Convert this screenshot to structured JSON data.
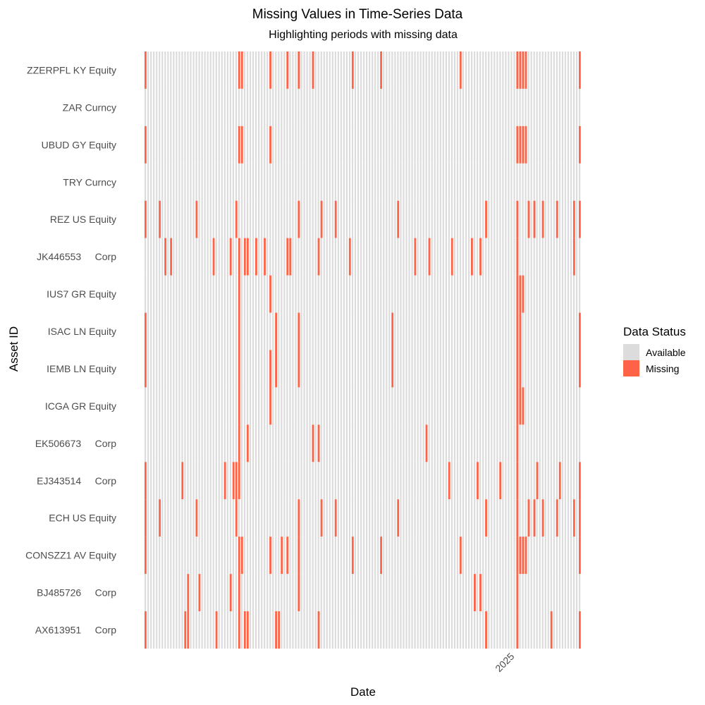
{
  "chart_data": {
    "type": "heatmap",
    "title": "Missing Values in Time-Series Data",
    "subtitle": "Highlighting periods with missing data",
    "xlabel": "Date",
    "ylabel": "Asset ID",
    "x_tick_labels": [
      "2025"
    ],
    "x_tick_column": 130,
    "column_count": 154,
    "grid": false,
    "legend": {
      "title": "Data Status",
      "placement": "right",
      "entries": [
        {
          "label": "Available",
          "color": "#dcdcdc"
        },
        {
          "label": "Missing",
          "color": "#ff6347"
        }
      ]
    },
    "assets": [
      "ZZERPFL KY Equity",
      "ZAR Curncy",
      "UBUD GY Equity",
      "TRY Curncy",
      "REZ US Equity",
      "JK446553     Corp",
      "IUS7 GR Equity",
      "ISAC LN Equity",
      "IEMB LN Equity",
      "ICGA GR Equity",
      "EK506673     Corp",
      "EJ343514     Corp",
      "ECH US Equity",
      "CONSZZ1 AV Equity",
      "BJ485726     Corp",
      "AX613951     Corp"
    ],
    "missing_columns": [
      [
        0,
        33,
        34,
        44,
        50,
        54,
        59,
        73,
        83,
        111,
        131,
        132,
        133,
        134,
        153
      ],
      [],
      [
        0,
        33,
        34,
        44,
        131,
        132,
        133,
        134,
        153
      ],
      [],
      [
        0,
        5,
        18,
        32,
        54,
        62,
        67,
        89,
        120,
        131,
        135,
        137,
        140,
        145,
        151,
        153
      ],
      [
        7,
        9,
        24,
        30,
        33,
        35,
        36,
        39,
        42,
        50,
        51,
        61,
        72,
        95,
        100,
        108,
        115,
        118,
        131,
        151
      ],
      [
        33,
        44,
        131,
        132,
        133
      ],
      [
        0,
        33,
        46,
        54,
        87,
        131,
        132,
        153
      ],
      [
        0,
        33,
        44,
        46,
        54,
        87,
        131,
        132,
        153
      ],
      [
        33,
        44,
        131,
        132,
        133
      ],
      [
        33,
        36,
        59,
        61,
        99,
        131
      ],
      [
        0,
        13,
        28,
        31,
        32,
        33,
        107,
        117,
        125,
        131,
        138,
        146,
        153
      ],
      [
        0,
        5,
        18,
        32,
        54,
        62,
        67,
        89,
        120,
        131,
        135,
        137,
        140,
        145,
        151,
        153
      ],
      [
        0,
        33,
        34,
        44,
        48,
        50,
        54,
        73,
        83,
        111,
        131,
        132,
        133,
        134,
        153
      ],
      [
        15,
        19,
        30,
        33,
        54,
        116,
        118,
        131
      ],
      [
        0,
        14,
        15,
        25,
        33,
        35,
        36,
        46,
        47,
        61,
        120,
        131,
        143,
        153
      ]
    ]
  }
}
